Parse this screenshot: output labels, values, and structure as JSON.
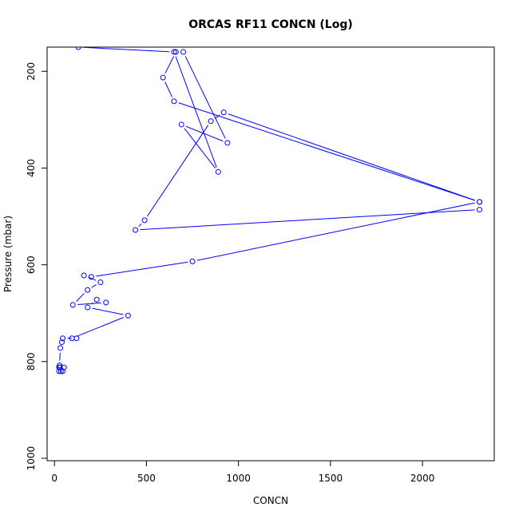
{
  "chart_data": {
    "type": "line",
    "title": "ORCAS RF11 CONCN (Log)",
    "xlabel": "CONCN",
    "ylabel": "Pressure (mbar)",
    "xlim": [
      -40,
      2390
    ],
    "ylim": [
      1005,
      150
    ],
    "y_reversed": true,
    "grid": false,
    "line_color": "#0000ff",
    "marker": "open-circle",
    "xticks": [
      0,
      500,
      1000,
      1500,
      2000
    ],
    "xtick_labels": [
      "0",
      "500",
      "1000",
      "1500",
      "2000"
    ],
    "yticks": [
      200,
      400,
      600,
      800,
      1000
    ],
    "ytick_labels": [
      "200",
      "400",
      "600",
      "800",
      "1000"
    ],
    "series": [
      {
        "points": [
          [
            25,
            812
          ],
          [
            30,
            812
          ],
          [
            25,
            820
          ],
          [
            35,
            820
          ],
          [
            45,
            820
          ],
          [
            52,
            812
          ],
          [
            28,
            808
          ],
          [
            32,
            772
          ],
          [
            40,
            760
          ],
          [
            45,
            752
          ],
          [
            120,
            752
          ],
          [
            95,
            752
          ],
          [
            400,
            705
          ],
          [
            180,
            688
          ],
          [
            230,
            672
          ],
          [
            280,
            678
          ],
          [
            100,
            683
          ],
          [
            180,
            652
          ],
          [
            250,
            636
          ],
          [
            160,
            622
          ],
          [
            200,
            625
          ],
          [
            750,
            593
          ],
          [
            2310,
            470
          ],
          [
            2310,
            486
          ],
          [
            440,
            528
          ],
          [
            490,
            508
          ],
          [
            850,
            303
          ],
          [
            920,
            285
          ],
          [
            2310,
            470
          ],
          [
            650,
            262
          ],
          [
            590,
            213
          ],
          [
            660,
            160
          ],
          [
            700,
            160
          ],
          [
            940,
            348
          ],
          [
            690,
            310
          ],
          [
            890,
            408
          ],
          [
            650,
            160
          ],
          [
            130,
            150
          ]
        ]
      }
    ]
  }
}
